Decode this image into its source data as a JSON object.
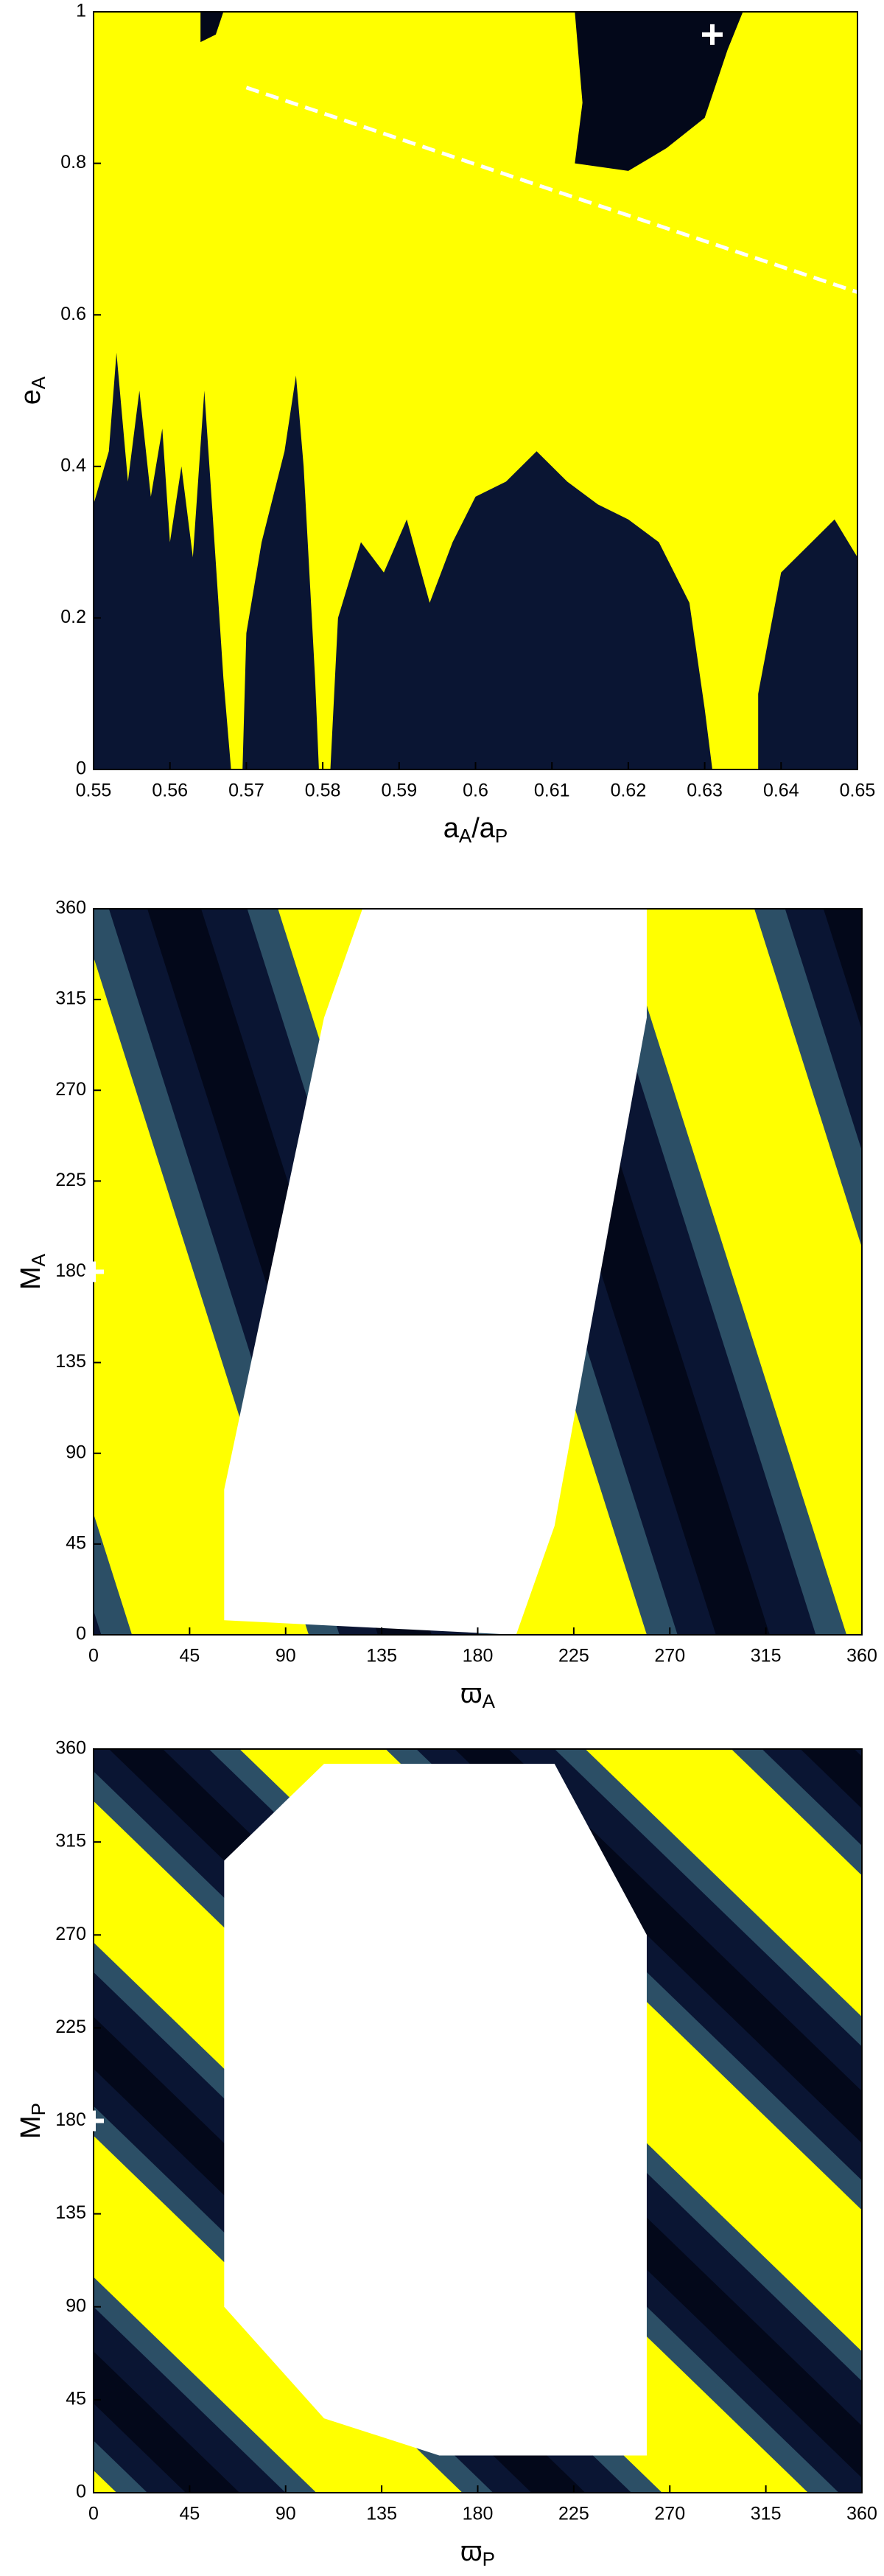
{
  "chart_data": [
    {
      "type": "heatmap",
      "xlabel": [
        {
          "text": "a"
        },
        {
          "text": "A",
          "sub": true
        },
        {
          "text": "/a"
        },
        {
          "text": "P",
          "sub": true
        }
      ],
      "ylabel": [
        {
          "text": "e"
        },
        {
          "text": "A",
          "sub": true
        }
      ],
      "xlim": [
        0.55,
        0.65
      ],
      "xticks": [
        0.55,
        0.56,
        0.57,
        0.58,
        0.59,
        0.6,
        0.61,
        0.62,
        0.63,
        0.64,
        0.65
      ],
      "ylim": [
        0,
        1
      ],
      "yticks": [
        0,
        0.2,
        0.4,
        0.6,
        0.8,
        1
      ],
      "marker": {
        "x": 0.631,
        "y": 0.97
      }
    },
    {
      "type": "heatmap",
      "xlabel": [
        {
          "text": "ϖ"
        },
        {
          "text": "A",
          "sub": true
        }
      ],
      "ylabel": [
        {
          "text": "M"
        },
        {
          "text": "A",
          "sub": true
        }
      ],
      "xlim": [
        0,
        360
      ],
      "xticks": [
        0,
        45,
        90,
        135,
        180,
        225,
        270,
        315,
        360
      ],
      "ylim": [
        0,
        360
      ],
      "yticks": [
        0,
        45,
        90,
        135,
        180,
        225,
        270,
        315,
        360
      ],
      "marker": {
        "x": 0,
        "y": 180
      }
    },
    {
      "type": "heatmap",
      "xlabel": [
        {
          "text": "ϖ"
        },
        {
          "text": "P",
          "sub": true
        }
      ],
      "ylabel": [
        {
          "text": "M"
        },
        {
          "text": "P",
          "sub": true
        }
      ],
      "xlim": [
        0,
        360
      ],
      "xticks": [
        0,
        45,
        90,
        135,
        180,
        225,
        270,
        315,
        360
      ],
      "ylim": [
        0,
        360
      ],
      "yticks": [
        0,
        45,
        90,
        135,
        180,
        225,
        270,
        315,
        360
      ],
      "marker": {
        "x": 0,
        "y": 180
      }
    }
  ]
}
